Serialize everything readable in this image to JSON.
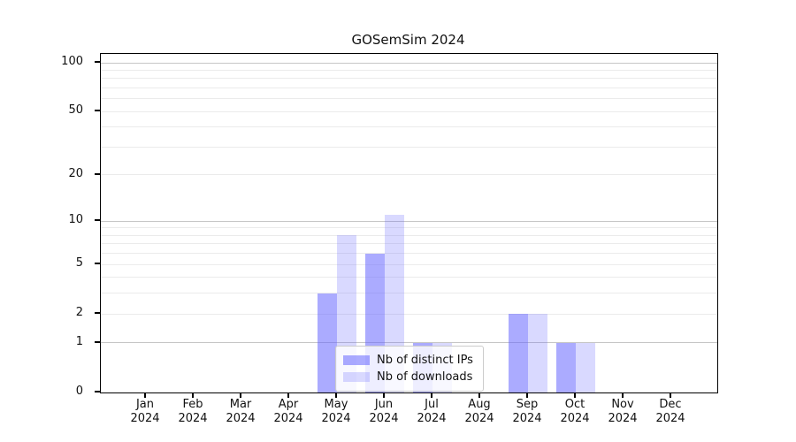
{
  "chart_data": {
    "type": "bar",
    "title": "GOSemSim 2024",
    "categories": [
      "Jan 2024",
      "Feb 2024",
      "Mar 2024",
      "Apr 2024",
      "May 2024",
      "Jun 2024",
      "Jul 2024",
      "Aug 2024",
      "Sep 2024",
      "Oct 2024",
      "Nov 2024",
      "Dec 2024"
    ],
    "series": [
      {
        "name": "Nb of distinct IPs",
        "color": "rgba(102,102,255,0.55)",
        "values": [
          0,
          0,
          0,
          0,
          3,
          6,
          1,
          0,
          2,
          1,
          0,
          0
        ]
      },
      {
        "name": "Nb of downloads",
        "color": "rgba(102,102,255,0.25)",
        "values": [
          0,
          0,
          0,
          0,
          8,
          11,
          1,
          0,
          2,
          1,
          0,
          0
        ]
      }
    ],
    "yscale": "log1p",
    "ylim": [
      0,
      113
    ],
    "yticks": [
      0,
      1,
      2,
      5,
      10,
      20,
      50,
      100
    ],
    "grid_major": [
      1,
      10,
      100
    ],
    "grid_minor": [
      2,
      3,
      4,
      5,
      6,
      7,
      8,
      9,
      20,
      30,
      40,
      50,
      60,
      70,
      80,
      90
    ],
    "xlabel": "",
    "ylabel": "",
    "grid": true,
    "legend_position": "bottom-center",
    "colors": {
      "axis": "#000000",
      "text": "#111111",
      "grid_major": "#c6c6c6",
      "grid_minor": "#ebebeb",
      "legend_border": "#cccccc"
    }
  }
}
